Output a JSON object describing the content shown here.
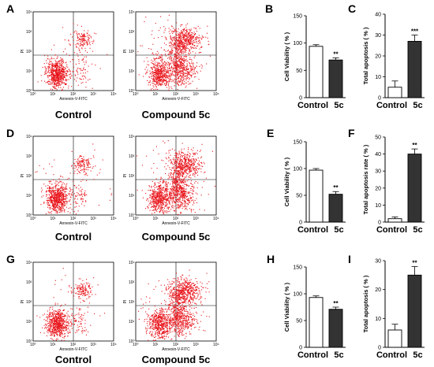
{
  "flow_plots": [
    {
      "panel": "A",
      "plots": [
        {
          "id": "A-control",
          "label": "Control",
          "x_axis_label": "Annexin-V-FITC",
          "y_axis_label": "PI",
          "treated": false
        },
        {
          "id": "A-compound",
          "label": "Compound 5c",
          "x_axis_label": "Annexin-V-FITC",
          "y_axis_label": "PI",
          "treated": true
        }
      ]
    },
    {
      "panel": "D",
      "plots": [
        {
          "id": "D-control",
          "label": "Control",
          "x_axis_label": "Annexin-V-FITC",
          "y_axis_label": "PI",
          "treated": false
        },
        {
          "id": "D-compound",
          "label": "Compound 5c",
          "x_axis_label": "Annexin-V-FITC",
          "y_axis_label": "PI",
          "treated": true
        }
      ]
    },
    {
      "panel": "G",
      "plots": [
        {
          "id": "G-control",
          "label": "Control",
          "x_axis_label": "Annexin-V-FITC",
          "y_axis_label": "PI",
          "treated": false
        },
        {
          "id": "G-compound",
          "label": "Compound 5c",
          "x_axis_label": "Annexin-V-FITC",
          "y_axis_label": "PI",
          "treated": true
        }
      ]
    }
  ],
  "flow_ticks": [
    "10⁰",
    "10¹",
    "10²",
    "10³",
    "10⁴"
  ],
  "colors": {
    "dots": "#e8141b",
    "control_bar": "#ffffff",
    "treated_bar": "#333333",
    "axis": "#000000"
  },
  "chart_data": [
    {
      "type": "bar",
      "panel": "B",
      "ylabel": "Cell Viability ( % )",
      "categories": [
        "Control",
        "5c"
      ],
      "values": [
        94,
        69
      ],
      "errors": [
        3,
        4
      ],
      "ylim": [
        0,
        150
      ],
      "yticks": [
        0,
        50,
        100,
        150
      ],
      "significance": [
        "",
        "**"
      ]
    },
    {
      "type": "bar",
      "panel": "C",
      "ylabel": "Total apoptosis ( % )",
      "categories": [
        "Control",
        "5c"
      ],
      "values": [
        5,
        27
      ],
      "errors": [
        3,
        3
      ],
      "ylim": [
        0,
        40
      ],
      "yticks": [
        0,
        10,
        20,
        30,
        40
      ],
      "significance": [
        "",
        "***"
      ]
    },
    {
      "type": "bar",
      "panel": "E",
      "ylabel": "Cell Viability ( % )",
      "categories": [
        "Control",
        "5c"
      ],
      "values": [
        97,
        52
      ],
      "errors": [
        3,
        5
      ],
      "ylim": [
        0,
        150
      ],
      "yticks": [
        0,
        50,
        100,
        150
      ],
      "significance": [
        "",
        "**"
      ]
    },
    {
      "type": "bar",
      "panel": "F",
      "ylabel": "Total apoptosis rate ( % )",
      "categories": [
        "Control",
        "5c"
      ],
      "values": [
        2,
        40
      ],
      "errors": [
        1,
        3
      ],
      "ylim": [
        0,
        50
      ],
      "yticks": [
        0,
        10,
        20,
        30,
        40,
        50
      ],
      "significance": [
        "",
        "**"
      ]
    },
    {
      "type": "bar",
      "panel": "H",
      "ylabel": "Cell Viability ( % )",
      "categories": [
        "Control",
        "5c"
      ],
      "values": [
        93,
        71
      ],
      "errors": [
        3,
        4
      ],
      "ylim": [
        0,
        150
      ],
      "yticks": [
        0,
        50,
        100,
        150
      ],
      "significance": [
        "",
        "**"
      ]
    },
    {
      "type": "bar",
      "panel": "I",
      "ylabel": "Total apoptosis ( % )",
      "categories": [
        "Control",
        "5c"
      ],
      "values": [
        6,
        25
      ],
      "errors": [
        2,
        3
      ],
      "ylim": [
        0,
        30
      ],
      "yticks": [
        0,
        10,
        20,
        30
      ],
      "significance": [
        "",
        "**"
      ]
    }
  ]
}
